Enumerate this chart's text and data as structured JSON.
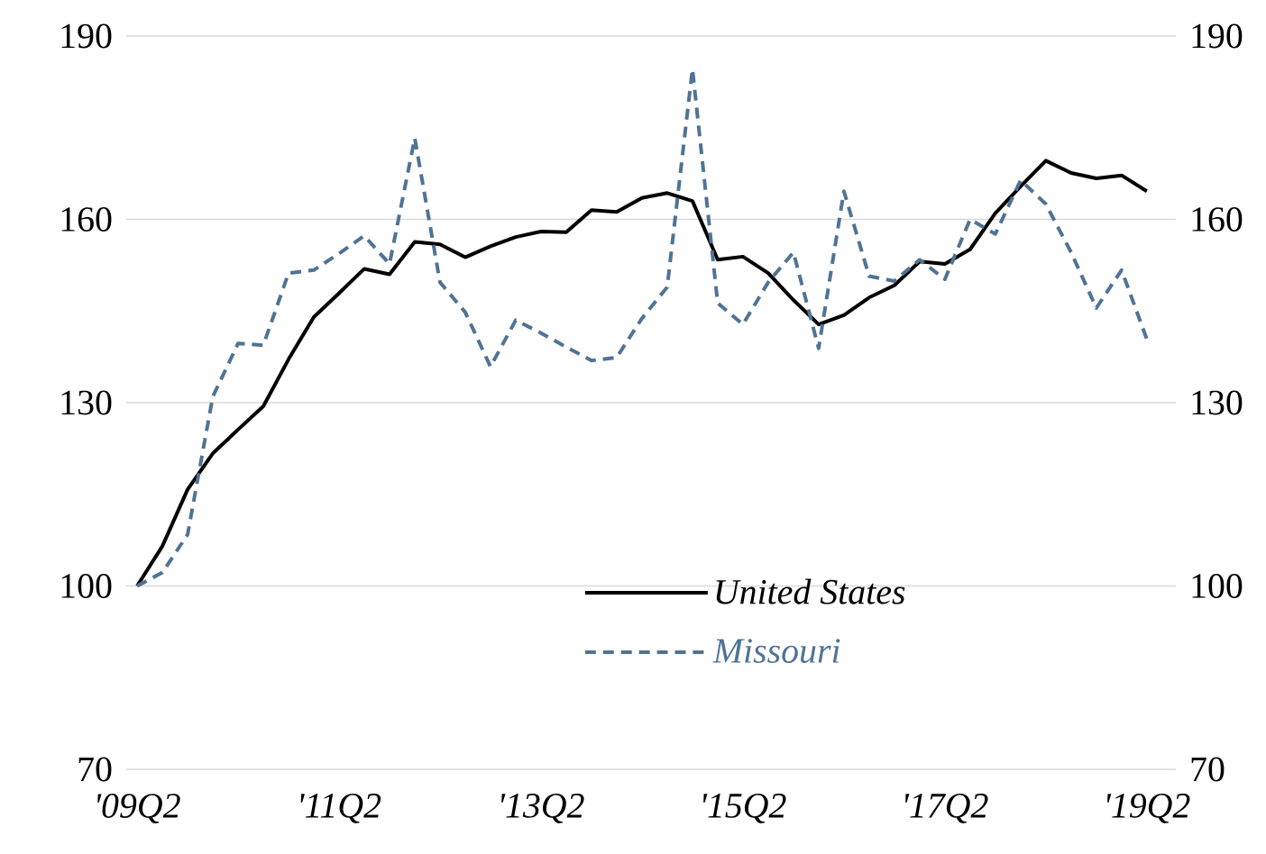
{
  "chart_data": {
    "type": "line",
    "categories": [
      "'09Q2",
      null,
      null,
      null,
      null,
      null,
      null,
      null,
      "'11Q2",
      null,
      null,
      null,
      null,
      null,
      null,
      null,
      "'13Q2",
      null,
      null,
      null,
      null,
      null,
      null,
      null,
      "'15Q2",
      null,
      null,
      null,
      null,
      null,
      null,
      null,
      "'17Q2",
      null,
      null,
      null,
      null,
      null,
      null,
      null,
      "'19Q2"
    ],
    "series": [
      {
        "name": "United States",
        "color": "#000000",
        "line_style": "solid",
        "values": [
          100,
          106.5,
          115.8,
          121.7,
          125.6,
          129.4,
          137.1,
          144.0,
          147.9,
          151.9,
          151.0,
          156.3,
          155.9,
          153.8,
          155.6,
          157.1,
          158.0,
          157.9,
          161.5,
          161.2,
          163.5,
          164.3,
          163.0,
          153.4,
          153.9,
          151.2,
          146.8,
          142.8,
          144.3,
          147.2,
          149.2,
          153.1,
          152.7,
          155.1,
          161.0,
          165.4,
          169.6,
          167.6,
          166.7,
          167.2,
          164.6
        ]
      },
      {
        "name": "Missouri",
        "color": "#4f7396",
        "line_style": "dashed",
        "values": [
          100,
          102.2,
          108.4,
          131.0,
          139.7,
          139.4,
          151.2,
          151.7,
          154.4,
          157.3,
          152.7,
          173.3,
          149.7,
          144.8,
          135.9,
          143.5,
          141.4,
          139.1,
          136.9,
          137.4,
          143.8,
          148.9,
          184.6,
          146.3,
          142.8,
          149.7,
          154.6,
          138.9,
          164.6,
          150.7,
          149.9,
          153.4,
          150.2,
          160.0,
          157.6,
          166.4,
          162.5,
          154.6,
          145.5,
          151.7,
          140.4
        ]
      }
    ],
    "ylim": [
      70,
      190
    ],
    "yticks": [
      70,
      100,
      130,
      160,
      190
    ],
    "y2lim": [
      70,
      190
    ],
    "y2ticks": [
      70,
      100,
      130,
      160,
      190
    ],
    "grid": "y",
    "legend": "bottom",
    "marker": "none"
  }
}
